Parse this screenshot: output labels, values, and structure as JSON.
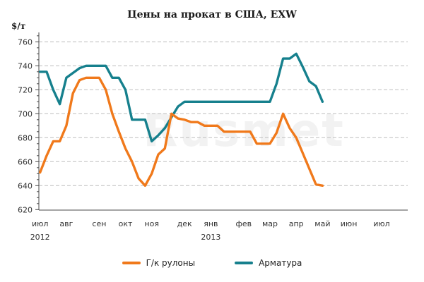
{
  "watermark": "Rusmet",
  "chart_data": {
    "type": "line",
    "title": "Цены на прокат в США, EXW",
    "ylabel": "$/т",
    "xlabel": "",
    "ylim": [
      620,
      768
    ],
    "grid": "horizontal dashed",
    "legend_position": "bottom",
    "x_unit": "week, июл 2012 = 0",
    "y_ticks": [
      620,
      640,
      660,
      680,
      700,
      720,
      740,
      760
    ],
    "x_ticks": [
      {
        "label": "июл",
        "week": 0
      },
      {
        "label": "авг",
        "week": 4
      },
      {
        "label": "сен",
        "week": 9
      },
      {
        "label": "окт",
        "week": 13
      },
      {
        "label": "ноя",
        "week": 17
      },
      {
        "label": "дек",
        "week": 22
      },
      {
        "label": "янв",
        "week": 26
      },
      {
        "label": "фев",
        "week": 31
      },
      {
        "label": "мар",
        "week": 35
      },
      {
        "label": "апр",
        "week": 39
      },
      {
        "label": "май",
        "week": 43
      },
      {
        "label": "июн",
        "week": 47
      },
      {
        "label": "июл",
        "week": 52
      }
    ],
    "year_labels": [
      {
        "label": "2012",
        "week": 0
      },
      {
        "label": "2013",
        "week": 26
      }
    ],
    "series": [
      {
        "id": "hot-rolled-coils",
        "name": "Г/к рулоны",
        "color": "#F0791B",
        "values": [
          651,
          665,
          677,
          677,
          690,
          717,
          728,
          730,
          730,
          730,
          720,
          700,
          685,
          671,
          660,
          646,
          640,
          650,
          666,
          671,
          700,
          696,
          695,
          693,
          693,
          690,
          690,
          690,
          685,
          685,
          685,
          685,
          685,
          675,
          675,
          675,
          684,
          700,
          688,
          680,
          667,
          654,
          641,
          640
        ]
      },
      {
        "id": "rebar",
        "name": "Арматура",
        "color": "#16808D",
        "values": [
          735,
          735,
          720,
          708,
          730,
          734,
          738,
          740,
          740,
          740,
          740,
          730,
          730,
          720,
          695,
          695,
          695,
          677,
          682,
          688,
          697,
          706,
          710,
          710,
          710,
          710,
          710,
          710,
          710,
          710,
          710,
          710,
          710,
          710,
          710,
          710,
          725,
          746,
          746,
          750,
          739,
          727,
          723,
          710
        ]
      }
    ]
  }
}
